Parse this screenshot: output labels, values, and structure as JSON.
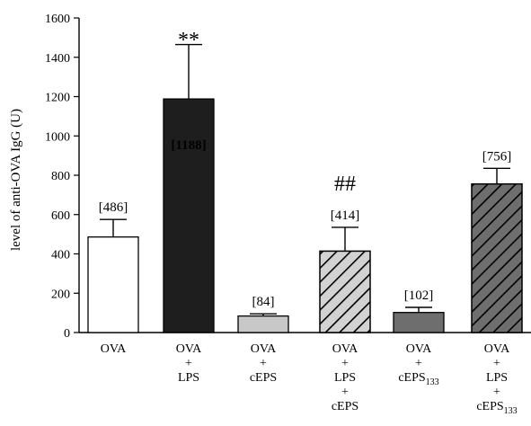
{
  "chart_data": {
    "type": "bar",
    "title": "",
    "xlabel": "",
    "ylabel": "level of anti-OVA IgG (U)",
    "ylim": [
      0,
      1600
    ],
    "yticks": [
      0,
      200,
      400,
      600,
      800,
      1000,
      1200,
      1400,
      1600
    ],
    "grid": false,
    "categories": [
      [
        "OVA"
      ],
      [
        "OVA",
        "+",
        "LPS"
      ],
      [
        "OVA",
        "+",
        "cEPS"
      ],
      [
        "OVA",
        "+",
        "LPS",
        "+",
        "cEPS"
      ],
      [
        "OVA",
        "+",
        "cEPS133"
      ],
      [
        "OVA",
        "+",
        "LPS",
        "+",
        "cEPS133"
      ]
    ],
    "values": [
      486,
      1188,
      84,
      414,
      102,
      756
    ],
    "error_upper": [
      575,
      1465,
      95,
      535,
      128,
      835
    ],
    "data_labels": [
      "[486]",
      "[1188]",
      "[84]",
      "[414]",
      "[102]",
      "[756]"
    ],
    "significance": [
      {
        "bar": 1,
        "text": "**"
      },
      {
        "bar": 3,
        "text": "##"
      }
    ],
    "bar_styles": [
      {
        "fill": "#ffffff",
        "hatch": false,
        "label_inside": false
      },
      {
        "fill": "#1e1e1e",
        "hatch": false,
        "label_inside": true,
        "label_color": "#ffffff"
      },
      {
        "fill": "#c8c8c8",
        "hatch": false,
        "label_inside": false
      },
      {
        "fill": "#d2d2d2",
        "hatch": true,
        "label_inside": false
      },
      {
        "fill": "#6e6e6e",
        "hatch": false,
        "label_inside": false
      },
      {
        "fill": "#6e6e6e",
        "hatch": true,
        "label_inside": false
      }
    ]
  }
}
